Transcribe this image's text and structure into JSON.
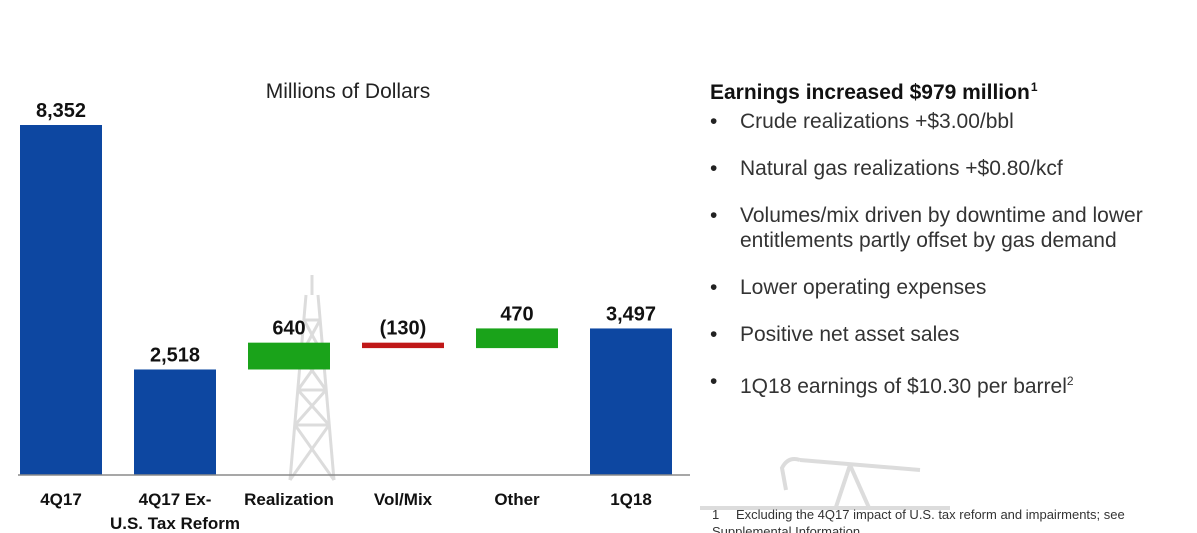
{
  "chart_data": {
    "type": "waterfall",
    "unit_label": "Millions of Dollars",
    "categories": [
      "4Q17",
      "4Q17 Ex-\nU.S. Tax Reform",
      "Realization",
      "Vol/Mix",
      "Other",
      "1Q18"
    ],
    "values": [
      8352,
      2518,
      640,
      -130,
      470,
      3497
    ],
    "data_labels": [
      "8,352",
      "2,518",
      "640",
      "(130)",
      "470",
      "3,497"
    ],
    "kinds": [
      "total",
      "total",
      "delta",
      "delta",
      "delta",
      "total"
    ],
    "ylim": [
      0,
      8352
    ]
  },
  "colors": {
    "total": "#0d47a1",
    "increase": "#1aa31a",
    "decrease": "#c01818",
    "watermark": "#dcdcdc"
  },
  "panel": {
    "title": "Earnings increased $979 million",
    "title_sup": "1",
    "bullets": [
      {
        "text": "Crude realizations +$3.00/bbl",
        "sup": ""
      },
      {
        "text": "Natural gas realizations +$0.80/kcf",
        "sup": ""
      },
      {
        "text": "Volumes/mix driven by downtime and lower entitlements partly offset by gas demand",
        "sup": ""
      },
      {
        "text": "Lower operating expenses",
        "sup": ""
      },
      {
        "text": "Positive net asset sales",
        "sup": ""
      },
      {
        "text": "1Q18 earnings of $10.30 per barrel",
        "sup": "2"
      }
    ]
  },
  "footnote": {
    "number": "1",
    "text": "Excluding the 4Q17 impact of U.S. tax reform and impairments; see Supplemental Information."
  },
  "watermarks": [
    "oil-derrick-icon",
    "pumpjack-icon"
  ]
}
